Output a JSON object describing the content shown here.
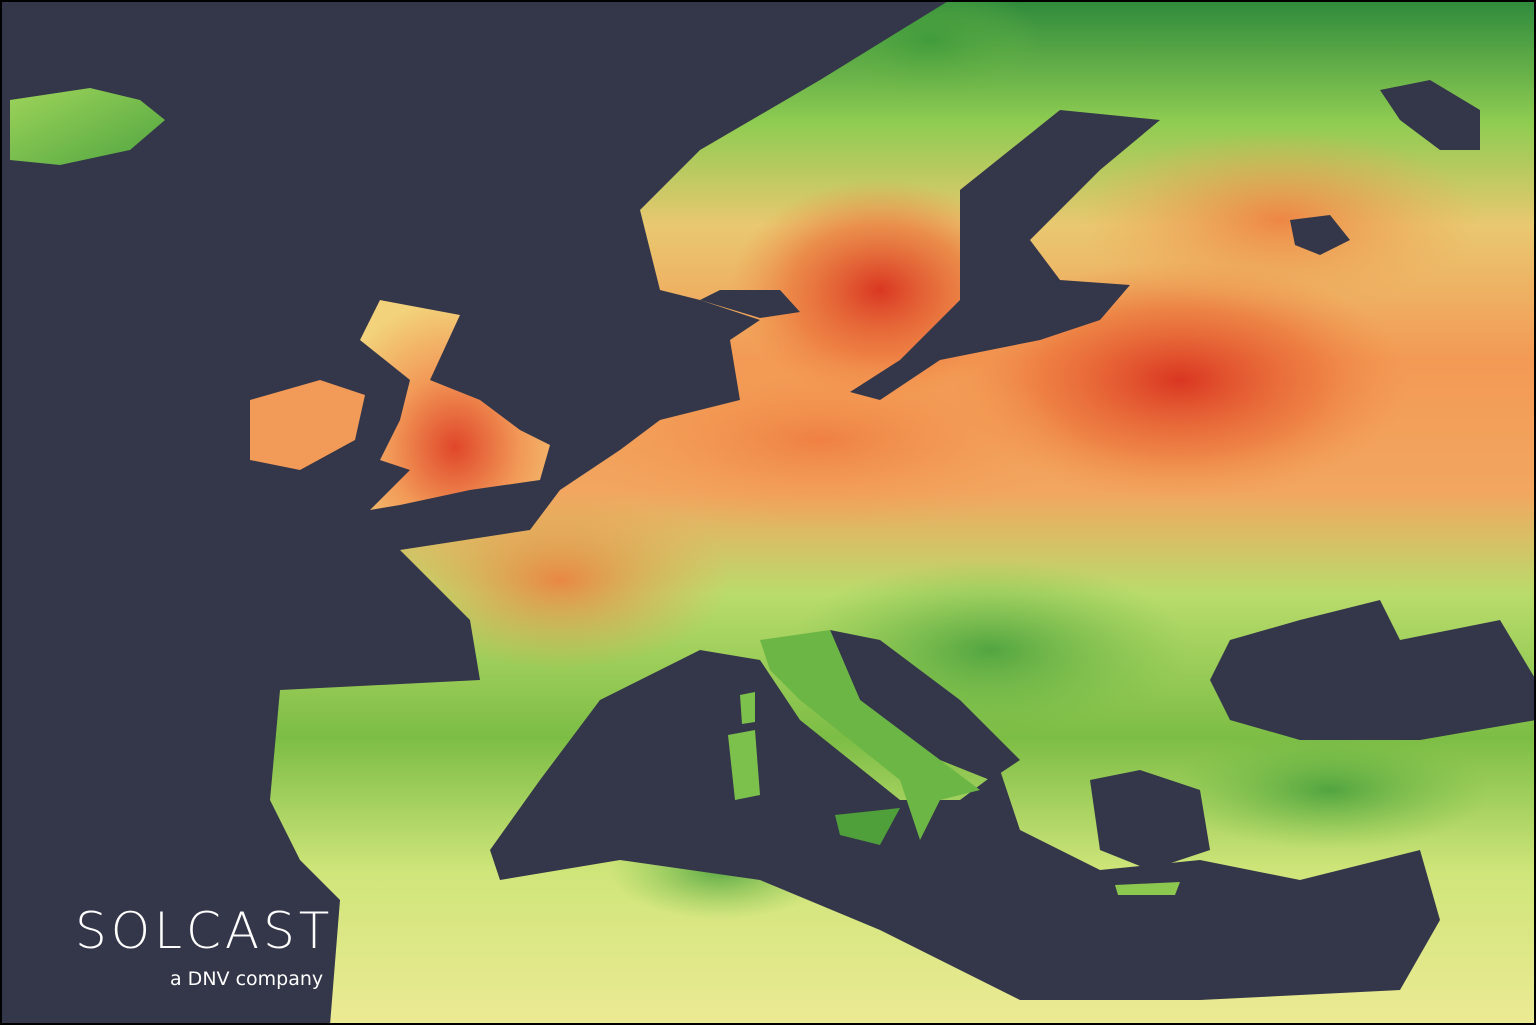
{
  "logo": {
    "name": "SOLCAST",
    "tagline": "a DNV company"
  }
}
